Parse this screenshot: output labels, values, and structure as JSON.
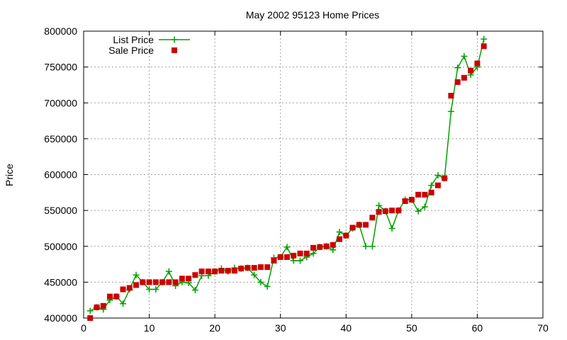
{
  "chart_data": {
    "type": "line",
    "title": "May 2002 95123 Home Prices",
    "xlabel": "",
    "ylabel": "Price",
    "xlim": [
      0,
      70
    ],
    "ylim": [
      400000,
      800000
    ],
    "xticks": [
      0,
      10,
      20,
      30,
      40,
      50,
      60,
      70
    ],
    "yticks": [
      400000,
      450000,
      500000,
      550000,
      600000,
      650000,
      700000,
      750000,
      800000
    ],
    "xtick_labels": [
      "0",
      "10",
      "20",
      "30",
      "40",
      "50",
      "60",
      "70"
    ],
    "ytick_labels": [
      "400000",
      "450000",
      "500000",
      "550000",
      "600000",
      "650000",
      "700000",
      "750000",
      "800000"
    ],
    "grid": true,
    "legend": "top-left",
    "series": [
      {
        "name": "List Price",
        "style": "line-plus",
        "color": "#00a000",
        "points": [
          [
            1,
            410000
          ],
          [
            2,
            415000
          ],
          [
            3,
            412000
          ],
          [
            4,
            425000
          ],
          [
            5,
            430000
          ],
          [
            6,
            420000
          ],
          [
            7,
            440000
          ],
          [
            8,
            460000
          ],
          [
            9,
            450000
          ],
          [
            10,
            440000
          ],
          [
            11,
            440000
          ],
          [
            12,
            450000
          ],
          [
            13,
            465000
          ],
          [
            14,
            445000
          ],
          [
            15,
            450000
          ],
          [
            16,
            449000
          ],
          [
            17,
            439000
          ],
          [
            18,
            459000
          ],
          [
            19,
            459000
          ],
          [
            20,
            465000
          ],
          [
            21,
            469000
          ],
          [
            22,
            465000
          ],
          [
            23,
            470000
          ],
          [
            24,
            469000
          ],
          [
            25,
            470000
          ],
          [
            26,
            460000
          ],
          [
            27,
            450000
          ],
          [
            28,
            444000
          ],
          [
            29,
            484000
          ],
          [
            30,
            485000
          ],
          [
            31,
            499000
          ],
          [
            32,
            480000
          ],
          [
            33,
            480000
          ],
          [
            34,
            485000
          ],
          [
            35,
            490000
          ],
          [
            36,
            499000
          ],
          [
            37,
            500000
          ],
          [
            38,
            495000
          ],
          [
            39,
            520000
          ],
          [
            40,
            515000
          ],
          [
            41,
            525000
          ],
          [
            42,
            530000
          ],
          [
            43,
            500000
          ],
          [
            44,
            500000
          ],
          [
            45,
            557000
          ],
          [
            46,
            549000
          ],
          [
            47,
            525000
          ],
          [
            48,
            550000
          ],
          [
            49,
            565000
          ],
          [
            50,
            565000
          ],
          [
            51,
            549000
          ],
          [
            52,
            555000
          ],
          [
            53,
            585000
          ],
          [
            54,
            599000
          ],
          [
            55,
            595000
          ],
          [
            56,
            688000
          ],
          [
            57,
            749000
          ],
          [
            58,
            765000
          ],
          [
            59,
            739000
          ],
          [
            60,
            750000
          ],
          [
            61,
            789000
          ]
        ]
      },
      {
        "name": "Sale Price",
        "style": "points-square",
        "color": "#cc0000",
        "points": [
          [
            1,
            400000
          ],
          [
            2,
            415000
          ],
          [
            3,
            417000
          ],
          [
            4,
            430000
          ],
          [
            5,
            430000
          ],
          [
            6,
            440000
          ],
          [
            7,
            442000
          ],
          [
            8,
            446000
          ],
          [
            9,
            450000
          ],
          [
            10,
            450000
          ],
          [
            11,
            450000
          ],
          [
            12,
            450000
          ],
          [
            13,
            450000
          ],
          [
            14,
            450000
          ],
          [
            15,
            455000
          ],
          [
            16,
            455000
          ],
          [
            17,
            460000
          ],
          [
            18,
            465000
          ],
          [
            19,
            465000
          ],
          [
            20,
            465000
          ],
          [
            21,
            466000
          ],
          [
            22,
            466000
          ],
          [
            23,
            466000
          ],
          [
            24,
            469000
          ],
          [
            25,
            470000
          ],
          [
            26,
            470000
          ],
          [
            27,
            471000
          ],
          [
            28,
            471000
          ],
          [
            29,
            480000
          ],
          [
            30,
            485000
          ],
          [
            31,
            485000
          ],
          [
            32,
            487000
          ],
          [
            33,
            490000
          ],
          [
            34,
            490000
          ],
          [
            35,
            498000
          ],
          [
            36,
            499000
          ],
          [
            37,
            500000
          ],
          [
            38,
            502000
          ],
          [
            39,
            510000
          ],
          [
            40,
            515000
          ],
          [
            41,
            526000
          ],
          [
            42,
            530000
          ],
          [
            43,
            530000
          ],
          [
            44,
            540000
          ],
          [
            45,
            548000
          ],
          [
            46,
            549000
          ],
          [
            47,
            550000
          ],
          [
            48,
            550000
          ],
          [
            49,
            563000
          ],
          [
            50,
            565000
          ],
          [
            51,
            572000
          ],
          [
            52,
            572000
          ],
          [
            53,
            575000
          ],
          [
            54,
            585000
          ],
          [
            55,
            595000
          ],
          [
            56,
            710000
          ],
          [
            57,
            729000
          ],
          [
            58,
            735000
          ],
          [
            59,
            745000
          ],
          [
            60,
            755000
          ],
          [
            61,
            779000
          ]
        ]
      }
    ]
  }
}
